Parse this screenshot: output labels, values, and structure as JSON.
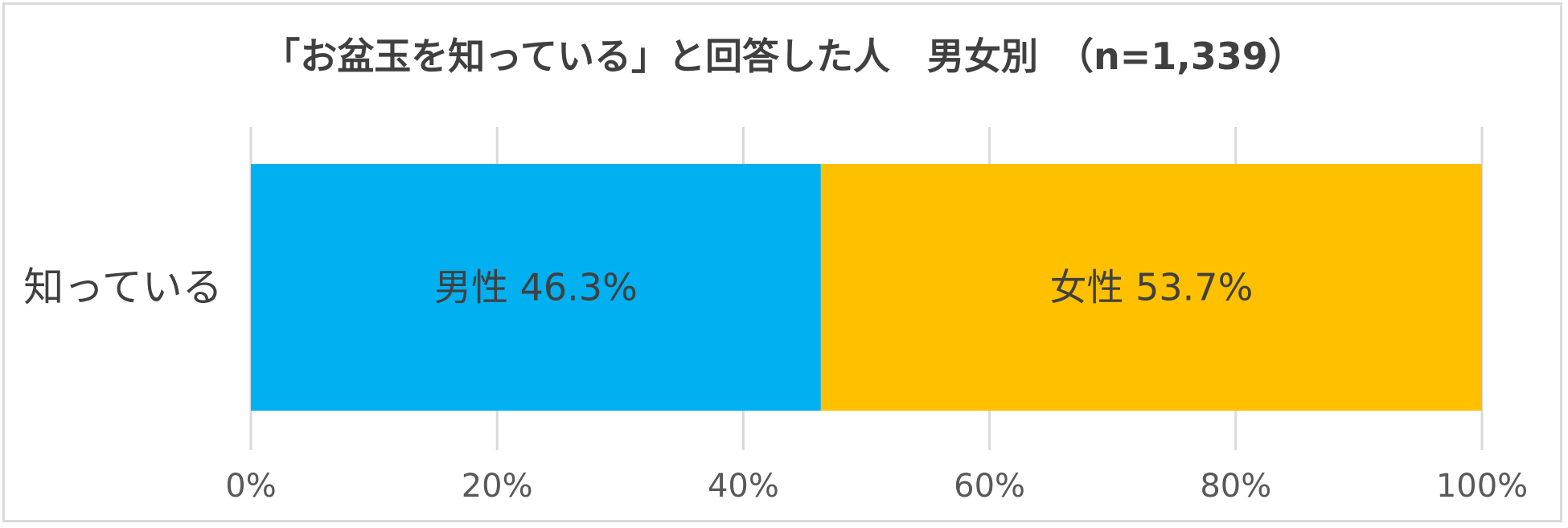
{
  "chart_data": {
    "type": "bar",
    "orientation": "horizontal",
    "stacked": true,
    "percent": true,
    "title": "「お盆玉を知っている」と回答した人　男女別　（n=1,339）",
    "categories": [
      "知っている"
    ],
    "series": [
      {
        "name": "男性",
        "values": [
          46.3
        ],
        "label": "男性 46.3%",
        "color": "#00b0f0"
      },
      {
        "name": "女性",
        "values": [
          53.7
        ],
        "label": "女性 53.7%",
        "color": "#ffc000"
      }
    ],
    "xlim": [
      0,
      100
    ],
    "xticks": [
      0,
      20,
      40,
      60,
      80,
      100
    ],
    "xtick_labels": [
      "0%",
      "20%",
      "40%",
      "60%",
      "80%",
      "100%"
    ],
    "grid": true,
    "legend": "none"
  }
}
